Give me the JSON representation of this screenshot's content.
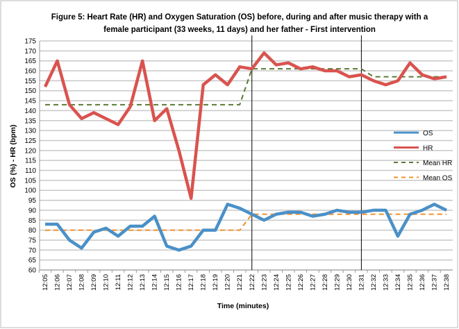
{
  "chart_data": {
    "type": "line",
    "title_lines": [
      "Figure 5: Heart Rate (HR) and Oxygen Saturation (OS) before, during and after music therapy with a",
      "female participant (33 weeks, 11 days) and her father - First intervention"
    ],
    "xlabel": "Time (minutes)",
    "ylabel": "OS (%) - HR (bpm)",
    "ylim": [
      60,
      175
    ],
    "ytick_step": 5,
    "grid": true,
    "legend_position": "right",
    "categories": [
      "12:05",
      "12:06",
      "12:07",
      "12:08",
      "12:09",
      "12:10",
      "12:11",
      "12:12",
      "12:13",
      "12:14",
      "12:15",
      "12:16",
      "12:17",
      "12:18",
      "12:19",
      "12:20",
      "12:21",
      "12:22",
      "12:23",
      "12:24",
      "12:25",
      "12:26",
      "12:27",
      "12:28",
      "12:29",
      "12:30",
      "12:31",
      "12:32",
      "12:33",
      "12:34",
      "12:35",
      "12:36",
      "12:37",
      "12:38"
    ],
    "vertical_markers": [
      "12:22",
      "12:31"
    ],
    "series": [
      {
        "name": "OS",
        "style": "solid",
        "color": "#4a90c8",
        "values": [
          83,
          83,
          75,
          71,
          79,
          81,
          77,
          82,
          82,
          87,
          72,
          70,
          72,
          80,
          80,
          93,
          91,
          88,
          85,
          88,
          89,
          89,
          87,
          88,
          90,
          89,
          89,
          90,
          90,
          77,
          88,
          90,
          93,
          90
        ]
      },
      {
        "name": "HR",
        "style": "solid",
        "color": "#d9534f",
        "values": [
          152,
          165,
          143,
          136,
          139,
          136,
          133,
          142,
          165,
          135,
          141,
          120,
          96,
          153,
          158,
          153,
          162,
          161,
          169,
          163,
          164,
          161,
          162,
          160,
          160,
          157,
          158,
          155,
          153,
          155,
          164,
          158,
          156,
          157
        ]
      },
      {
        "name": "Mean HR",
        "style": "dashed",
        "color": "#5a7a32",
        "values": [
          143,
          143,
          143,
          143,
          143,
          143,
          143,
          143,
          143,
          143,
          143,
          143,
          143,
          143,
          143,
          143,
          143,
          161,
          161,
          161,
          161,
          161,
          161,
          161,
          161,
          161,
          161,
          157,
          157,
          157,
          157,
          157,
          157,
          157
        ]
      },
      {
        "name": "Mean OS",
        "style": "dashed",
        "color": "#f0902a",
        "values": [
          80,
          80,
          80,
          80,
          80,
          80,
          80,
          80,
          80,
          80,
          80,
          80,
          80,
          80,
          80,
          80,
          80,
          88,
          88,
          88,
          88,
          88,
          88,
          88,
          88,
          88,
          88,
          88,
          88,
          88,
          88,
          88,
          88,
          88
        ]
      }
    ]
  }
}
